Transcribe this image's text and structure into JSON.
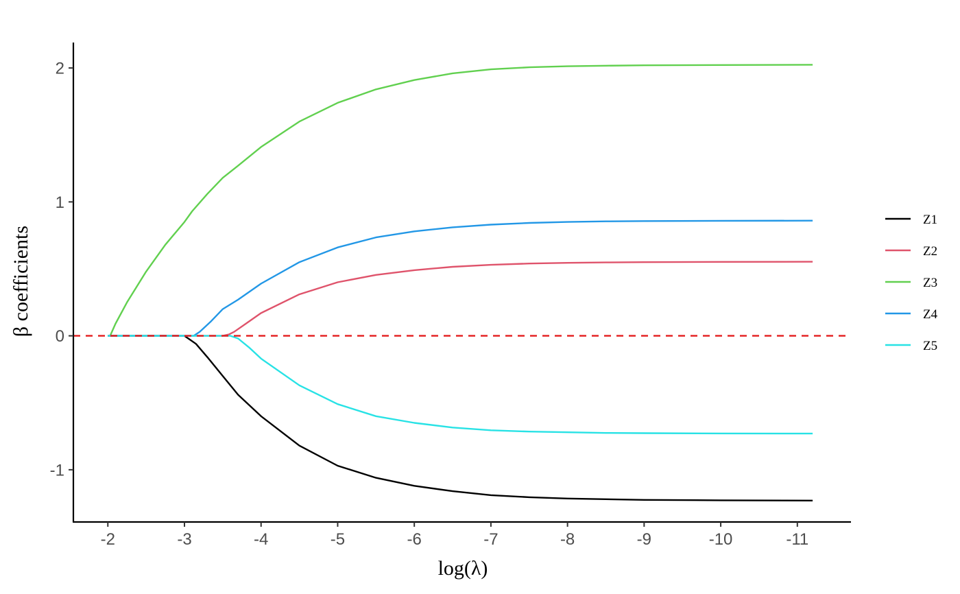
{
  "chart_data": {
    "type": "line",
    "title": "",
    "xlabel": "log(λ)",
    "ylabel": "β coefficients",
    "x_reversed": true,
    "xlim": [
      -1.55,
      -11.7
    ],
    "ylim": [
      -1.39,
      2.19
    ],
    "x_ticks": [
      -2,
      -3,
      -4,
      -5,
      -6,
      -7,
      -8,
      -9,
      -10,
      -11
    ],
    "x_tick_labels": [
      "-2",
      "-3",
      "-4",
      "-5",
      "-6",
      "-7",
      "-8",
      "-9",
      "-10",
      "-11"
    ],
    "y_ticks": [
      -1,
      0,
      1,
      2
    ],
    "y_tick_labels": [
      "-1",
      "0",
      "1",
      "2"
    ],
    "grid": false,
    "legend_position": "right",
    "reference_line": {
      "y": 0,
      "color": "#e31a1c",
      "style": "dashed"
    },
    "series": [
      {
        "name": "Z1",
        "color": "#000000",
        "points": [
          [
            -2.0,
            0
          ],
          [
            -2.5,
            0
          ],
          [
            -3.0,
            0
          ],
          [
            -3.05,
            -0.02
          ],
          [
            -3.15,
            -0.06
          ],
          [
            -3.3,
            -0.16
          ],
          [
            -3.5,
            -0.3
          ],
          [
            -3.7,
            -0.44
          ],
          [
            -4.0,
            -0.6
          ],
          [
            -4.5,
            -0.82
          ],
          [
            -5.0,
            -0.97
          ],
          [
            -5.5,
            -1.06
          ],
          [
            -6.0,
            -1.12
          ],
          [
            -6.5,
            -1.16
          ],
          [
            -7.0,
            -1.19
          ],
          [
            -7.5,
            -1.205
          ],
          [
            -8.0,
            -1.215
          ],
          [
            -8.5,
            -1.22
          ],
          [
            -9.0,
            -1.225
          ],
          [
            -10.0,
            -1.228
          ],
          [
            -11.2,
            -1.23
          ]
        ]
      },
      {
        "name": "Z2",
        "color": "#df536b",
        "points": [
          [
            -2.0,
            0
          ],
          [
            -3.0,
            0
          ],
          [
            -3.5,
            0
          ],
          [
            -3.58,
            0.01
          ],
          [
            -3.65,
            0.03
          ],
          [
            -3.8,
            0.09
          ],
          [
            -4.0,
            0.17
          ],
          [
            -4.5,
            0.31
          ],
          [
            -5.0,
            0.4
          ],
          [
            -5.5,
            0.455
          ],
          [
            -6.0,
            0.49
          ],
          [
            -6.5,
            0.515
          ],
          [
            -7.0,
            0.53
          ],
          [
            -7.5,
            0.54
          ],
          [
            -8.0,
            0.545
          ],
          [
            -8.5,
            0.548
          ],
          [
            -9.0,
            0.55
          ],
          [
            -10.0,
            0.552
          ],
          [
            -11.2,
            0.553
          ]
        ]
      },
      {
        "name": "Z3",
        "color": "#61d04f",
        "points": [
          [
            -2.03,
            0
          ],
          [
            -2.1,
            0.09
          ],
          [
            -2.25,
            0.25
          ],
          [
            -2.5,
            0.48
          ],
          [
            -2.75,
            0.68
          ],
          [
            -3.0,
            0.85
          ],
          [
            -3.1,
            0.93
          ],
          [
            -3.3,
            1.06
          ],
          [
            -3.5,
            1.18
          ],
          [
            -3.7,
            1.27
          ],
          [
            -4.0,
            1.41
          ],
          [
            -4.5,
            1.6
          ],
          [
            -5.0,
            1.74
          ],
          [
            -5.5,
            1.84
          ],
          [
            -6.0,
            1.91
          ],
          [
            -6.5,
            1.96
          ],
          [
            -7.0,
            1.99
          ],
          [
            -7.5,
            2.005
          ],
          [
            -8.0,
            2.013
          ],
          [
            -8.5,
            2.017
          ],
          [
            -9.0,
            2.02
          ],
          [
            -10.0,
            2.022
          ],
          [
            -11.2,
            2.024
          ]
        ]
      },
      {
        "name": "Z4",
        "color": "#2297e6",
        "points": [
          [
            -2.0,
            0
          ],
          [
            -3.0,
            0
          ],
          [
            -3.12,
            0
          ],
          [
            -3.2,
            0.03
          ],
          [
            -3.35,
            0.11
          ],
          [
            -3.5,
            0.2
          ],
          [
            -3.7,
            0.27
          ],
          [
            -4.0,
            0.39
          ],
          [
            -4.5,
            0.55
          ],
          [
            -5.0,
            0.66
          ],
          [
            -5.5,
            0.735
          ],
          [
            -6.0,
            0.78
          ],
          [
            -6.5,
            0.81
          ],
          [
            -7.0,
            0.83
          ],
          [
            -7.5,
            0.843
          ],
          [
            -8.0,
            0.85
          ],
          [
            -8.5,
            0.855
          ],
          [
            -9.0,
            0.857
          ],
          [
            -10.0,
            0.859
          ],
          [
            -11.2,
            0.86
          ]
        ]
      },
      {
        "name": "Z5",
        "color": "#28e2e5",
        "points": [
          [
            -2.0,
            0
          ],
          [
            -3.0,
            0
          ],
          [
            -3.6,
            0
          ],
          [
            -3.7,
            -0.02
          ],
          [
            -3.85,
            -0.09
          ],
          [
            -4.0,
            -0.17
          ],
          [
            -4.5,
            -0.37
          ],
          [
            -5.0,
            -0.51
          ],
          [
            -5.5,
            -0.6
          ],
          [
            -6.0,
            -0.65
          ],
          [
            -6.5,
            -0.685
          ],
          [
            -7.0,
            -0.705
          ],
          [
            -7.5,
            -0.715
          ],
          [
            -8.0,
            -0.72
          ],
          [
            -8.5,
            -0.725
          ],
          [
            -9.0,
            -0.727
          ],
          [
            -10.0,
            -0.729
          ],
          [
            -11.2,
            -0.73
          ]
        ]
      }
    ]
  }
}
